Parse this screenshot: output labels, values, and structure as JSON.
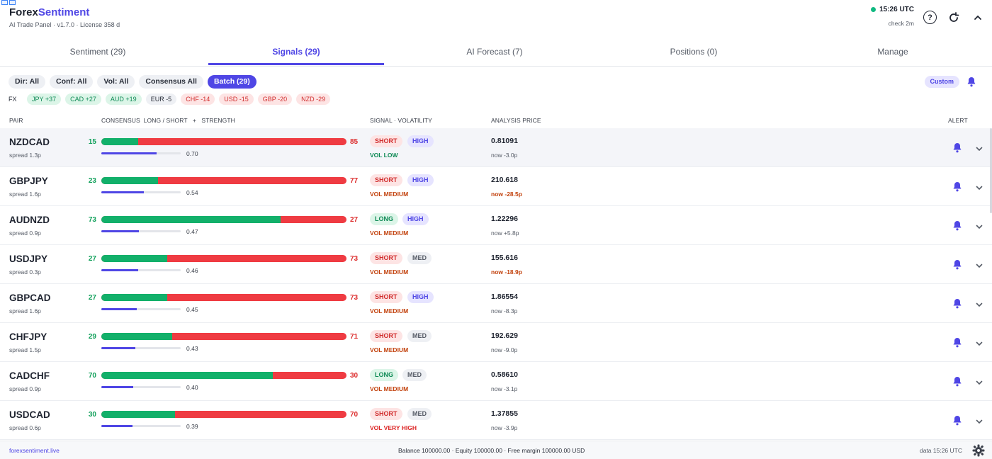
{
  "app": {
    "brand_main": "Forex",
    "brand_accent": "Sentiment",
    "subtitle": "AI Trade Panel · v1.7.0 · License 358 d",
    "clock": "15:26 UTC",
    "check": "check 2m",
    "help_label": "?",
    "status_color": "#10b981"
  },
  "tabs": [
    {
      "label": "Sentiment (29)"
    },
    {
      "label": "Signals (29)"
    },
    {
      "label": "AI Forecast (7)"
    },
    {
      "label": "Positions (0)"
    },
    {
      "label": "Manage"
    }
  ],
  "filters": [
    "Dir: All",
    "Conf: All",
    "Vol: All",
    "Consensus All",
    "Batch (29)"
  ],
  "custom_label": "Custom",
  "fx": {
    "label": "FX",
    "chips": [
      {
        "text": "JPY +37",
        "tone": "pos"
      },
      {
        "text": "CAD +27",
        "tone": "pos"
      },
      {
        "text": "AUD +19",
        "tone": "pos"
      },
      {
        "text": "EUR -5",
        "tone": "neu"
      },
      {
        "text": "CHF -14",
        "tone": "neg"
      },
      {
        "text": "USD -15",
        "tone": "neg"
      },
      {
        "text": "GBP -20",
        "tone": "neg"
      },
      {
        "text": "NZD -29",
        "tone": "neg"
      }
    ]
  },
  "columns": {
    "pair": "PAIR",
    "consensus": "CONSENSUS  LONG / SHORT   +   STRENGTH",
    "signal": "SIGNAL  ·  VOLATILITY",
    "price": "ANALYSIS PRICE",
    "alert": "ALERT"
  },
  "rows": [
    {
      "pair": "NZDCAD",
      "spread": "spread 1.3p",
      "long": 15,
      "short": 85,
      "strength": "0.70",
      "signal": "SHORT",
      "vol": "HIGH",
      "vol_label": "VOL LOW",
      "price": "0.81091",
      "delta": "now -3.0p",
      "delta_tone": "muted"
    },
    {
      "pair": "GBPJPY",
      "spread": "spread 1.6p",
      "long": 23,
      "short": 77,
      "strength": "0.54",
      "signal": "SHORT",
      "vol": "HIGH",
      "vol_label": "VOL MEDIUM",
      "price": "210.618",
      "delta": "now -28.5p",
      "delta_tone": "warn"
    },
    {
      "pair": "AUDNZD",
      "spread": "spread 0.9p",
      "long": 73,
      "short": 27,
      "strength": "0.47",
      "signal": "LONG",
      "vol": "HIGH",
      "vol_label": "VOL MEDIUM",
      "price": "1.22296",
      "delta": "now +5.8p",
      "delta_tone": "muted"
    },
    {
      "pair": "USDJPY",
      "spread": "spread 0.3p",
      "long": 27,
      "short": 73,
      "strength": "0.46",
      "signal": "SHORT",
      "vol": "MED",
      "vol_label": "VOL MEDIUM",
      "price": "155.616",
      "delta": "now -18.9p",
      "delta_tone": "warn"
    },
    {
      "pair": "GBPCAD",
      "spread": "spread 1.6p",
      "long": 27,
      "short": 73,
      "strength": "0.45",
      "signal": "SHORT",
      "vol": "HIGH",
      "vol_label": "VOL MEDIUM",
      "price": "1.86554",
      "delta": "now -8.3p",
      "delta_tone": "muted"
    },
    {
      "pair": "CHFJPY",
      "spread": "spread 1.5p",
      "long": 29,
      "short": 71,
      "strength": "0.43",
      "signal": "SHORT",
      "vol": "MED",
      "vol_label": "VOL MEDIUM",
      "price": "192.629",
      "delta": "now -9.0p",
      "delta_tone": "muted"
    },
    {
      "pair": "CADCHF",
      "spread": "spread 0.9p",
      "long": 70,
      "short": 30,
      "strength": "0.40",
      "signal": "LONG",
      "vol": "MED",
      "vol_label": "VOL MEDIUM",
      "price": "0.58610",
      "delta": "now -3.1p",
      "delta_tone": "muted"
    },
    {
      "pair": "USDCAD",
      "spread": "spread 0.6p",
      "long": 30,
      "short": 70,
      "strength": "0.39",
      "signal": "SHORT",
      "vol": "MED",
      "vol_label": "VOL VERY HIGH",
      "price": "1.37855",
      "delta": "now -3.9p",
      "delta_tone": "muted"
    }
  ],
  "footer": {
    "site": "forexsentiment.live",
    "balance": "Balance 100000.00  ·  Equity 100000.00  ·  Free margin 100000.00 USD",
    "data_time": "data 15:26 UTC"
  },
  "colors": {
    "accent": "#4f46e5",
    "long": "#12b06a",
    "short": "#ef3b42",
    "vol_low": "#0e8a55",
    "vol_medium": "#c2410c",
    "vol_very_high": "#dc2626",
    "delta_warn": "#c2410c"
  },
  "icons": {
    "help": "help-icon",
    "refresh": "refresh-icon",
    "collapse": "chevron-up-icon",
    "bell": "bell-icon",
    "expand": "chevron-down-icon",
    "settings": "gear-icon"
  }
}
